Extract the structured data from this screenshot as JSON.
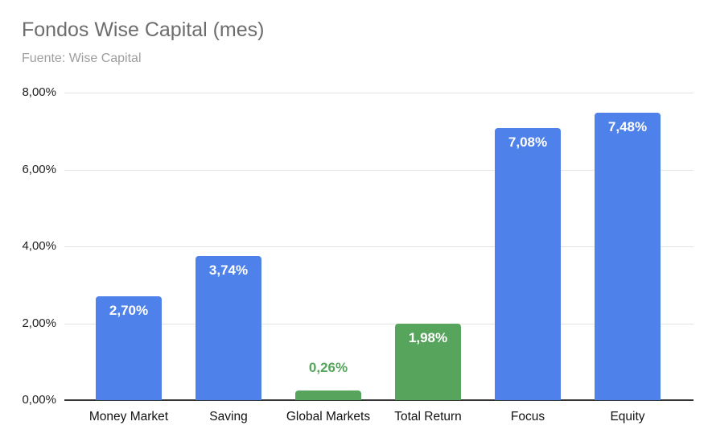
{
  "chart": {
    "title": "Fondos Wise Capital (mes)",
    "subtitle": "Fuente: Wise Capital"
  },
  "chart_data": {
    "type": "bar",
    "title": "Fondos Wise Capital (mes)",
    "subtitle": "Fuente: Wise Capital",
    "categories": [
      "Money Market",
      "Saving",
      "Global Markets",
      "Total Return",
      "Focus",
      "Equity"
    ],
    "values": [
      2.7,
      3.74,
      0.26,
      1.98,
      7.08,
      7.48
    ],
    "value_labels": [
      "2,70%",
      "3,74%",
      "0,26%",
      "1,98%",
      "7,08%",
      "7,48%"
    ],
    "bar_colors": [
      "#4e81e9",
      "#4e81e9",
      "#57a55c",
      "#57a55c",
      "#4e81e9",
      "#4e81e9"
    ],
    "value_label_placement": [
      "inside",
      "inside",
      "outside",
      "inside",
      "inside",
      "inside"
    ],
    "value_label_colors": [
      "#ffffff",
      "#ffffff",
      "#57a55c",
      "#ffffff",
      "#ffffff",
      "#ffffff"
    ],
    "xlabel": "",
    "ylabel": "",
    "ylim": [
      0,
      8
    ],
    "y_ticks": [
      {
        "value": 8,
        "label": "8,00%"
      },
      {
        "value": 6,
        "label": "6,00%"
      },
      {
        "value": 4,
        "label": "4,00%"
      },
      {
        "value": 2,
        "label": "2,00%"
      },
      {
        "value": 0,
        "label": "0,00%"
      }
    ],
    "grid": true,
    "legend_position": "none",
    "colors": {
      "blue_series": "#4e81e9",
      "green_series": "#57a55c",
      "grid_line": "#e3e3e3",
      "axis_line": "#333333",
      "title_text": "#6d6d6d",
      "subtitle_text": "#9e9e9e",
      "tick_text": "#1f1f1f",
      "background": "#ffffff"
    }
  }
}
